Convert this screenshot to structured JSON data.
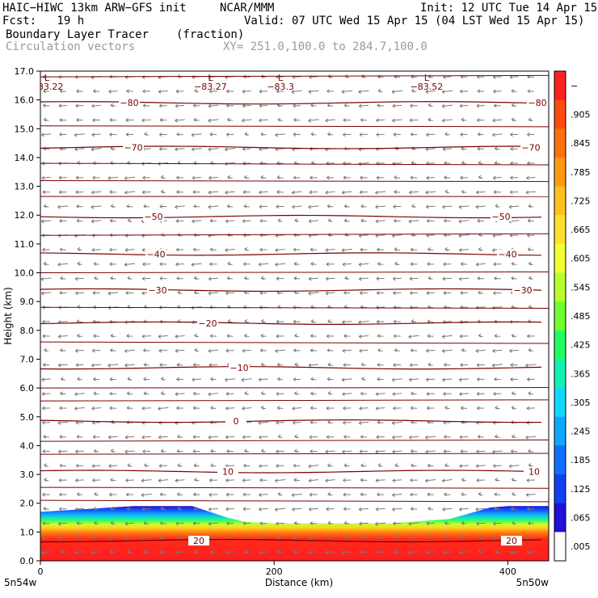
{
  "header": {
    "model": "HAIC−HIWC 13km ARW−GFS init",
    "org": "NCAR/MMM",
    "init": "Init: 12 UTC Tue 14 Apr 15",
    "fcst": "Fcst:   19 h",
    "valid": "Valid: 07 UTC Wed 15 Apr 15 (04 LST Wed 15 Apr 15)",
    "field": "Boundary Layer Tracer",
    "field_units": "(fraction)",
    "vectors": "Circulation vectors",
    "xy": "XY= 251.0,100.0 to 284.7,100.0"
  },
  "chart_data": {
    "type": "heatmap",
    "title": "Boundary Layer Tracer (fraction)",
    "xlabel": "Distance (km)",
    "ylabel": "Height (km)",
    "xlim": [
      0,
      435
    ],
    "ylim": [
      0,
      17
    ],
    "x_ticks": [
      0,
      200,
      400
    ],
    "x_tick_labels": [
      "0",
      "200",
      "400"
    ],
    "y_ticks": [
      0,
      1,
      2,
      3,
      4,
      5,
      6,
      7,
      8,
      9,
      10,
      11,
      12,
      13,
      14,
      15,
      16,
      17
    ],
    "y_tick_labels": [
      "0.0",
      "1.0",
      "2.0",
      "3.0",
      "4.0",
      "5.0",
      "6.0",
      "7.0",
      "8.0",
      "9.0",
      "10.0",
      "11.0",
      "12.0",
      "13.0",
      "14.0",
      "15.0",
      "16.0",
      "17.0"
    ],
    "x_end_labels": [
      "5n54w",
      "5n50w"
    ],
    "grid": false,
    "colorbar": {
      "labels": [
        "−",
        ".905",
        ".845",
        ".785",
        ".725",
        ".665",
        ".605",
        ".545",
        ".485",
        ".425",
        ".365",
        ".305",
        ".245",
        ".185",
        ".125",
        ".065",
        ".005"
      ],
      "colors": [
        "#ff2020",
        "#ff4a10",
        "#ff7010",
        "#ff9a10",
        "#ffc020",
        "#ffe030",
        "#f0ff30",
        "#b8ff30",
        "#70ff30",
        "#20ff60",
        "#10f0b0",
        "#10d8ff",
        "#10a8ff",
        "#1070ff",
        "#1040f0",
        "#2010d8",
        "#ffffff"
      ]
    },
    "pbl_top_km": {
      "x": [
        0,
        80,
        130,
        160,
        175,
        200,
        250,
        300,
        350,
        385,
        400,
        435
      ],
      "height": [
        1.7,
        1.9,
        1.9,
        1.5,
        1.35,
        1.3,
        1.3,
        1.3,
        1.45,
        1.85,
        1.9,
        1.9
      ]
    },
    "temperature_contours": [
      {
        "label": "−80",
        "height": 15.9
      },
      {
        "label": "−70",
        "height": 14.35
      },
      {
        "label": "−50",
        "height": 11.95
      },
      {
        "label": "−40",
        "height": 10.65
      },
      {
        "label": "−30",
        "height": 9.4
      },
      {
        "label": "−20",
        "height": 8.25
      },
      {
        "label": "−10",
        "height": 6.7
      },
      {
        "label": "0",
        "height": 4.85
      },
      {
        "label": "10",
        "height": 3.1
      },
      {
        "label": "20",
        "height": 0.7
      }
    ],
    "lows": [
      {
        "label": "−83.22",
        "x": 0
      },
      {
        "label": "−83.27",
        "x": 140
      },
      {
        "label": "−83.3",
        "x": 200
      },
      {
        "label": "−83.52",
        "x": 325
      }
    ]
  }
}
